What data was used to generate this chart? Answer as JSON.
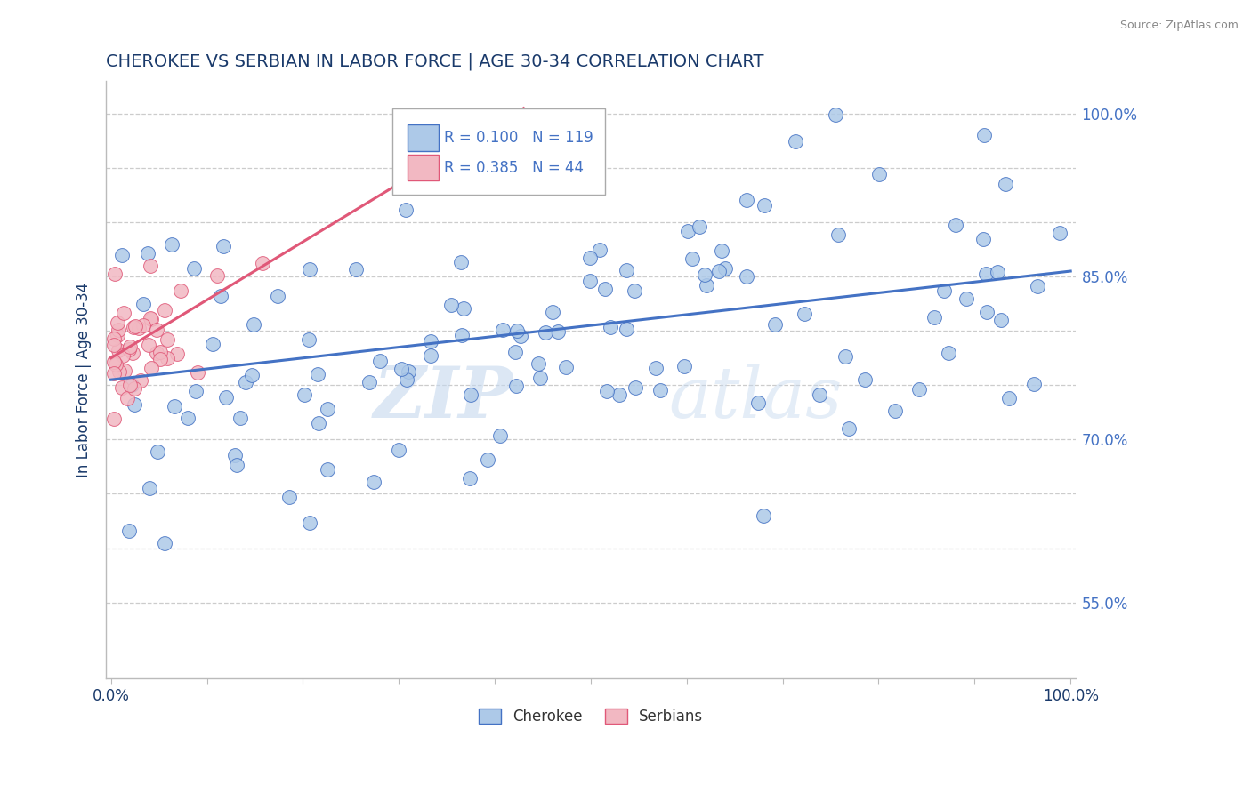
{
  "title": "CHEROKEE VS SERBIAN IN LABOR FORCE | AGE 30-34 CORRELATION CHART",
  "source": "Source: ZipAtlas.com",
  "ylabel": "In Labor Force | Age 30-34",
  "xlim": [
    0.0,
    1.0
  ],
  "ylim": [
    0.48,
    1.03
  ],
  "cherokee_R": 0.1,
  "cherokee_N": 119,
  "serbian_R": 0.385,
  "serbian_N": 44,
  "cherokee_color": "#adc9e8",
  "serbian_color": "#f2b8c2",
  "cherokee_line_color": "#4472c4",
  "serbian_line_color": "#e05878",
  "legend_cherokee_label": "Cherokee",
  "legend_serbian_label": "Serbians",
  "watermark_zip": "ZIP",
  "watermark_atlas": "atlas",
  "title_color": "#1a3a6b",
  "r_n_color": "#4472c4",
  "ytick_vals": [
    0.55,
    0.6,
    0.65,
    0.7,
    0.75,
    0.8,
    0.85,
    0.9,
    0.95,
    1.0
  ],
  "ytick_labels": [
    "55.0%",
    "",
    "",
    "70.0%",
    "",
    "",
    "85.0%",
    "",
    "",
    "100.0%"
  ],
  "cherokee_trend_x": [
    0.0,
    1.0
  ],
  "cherokee_trend_y": [
    0.755,
    0.855
  ],
  "serbian_trend_x0": 0.0,
  "serbian_trend_x1": 0.43,
  "serbian_trend_y0": 0.775,
  "serbian_trend_y1": 1.005
}
